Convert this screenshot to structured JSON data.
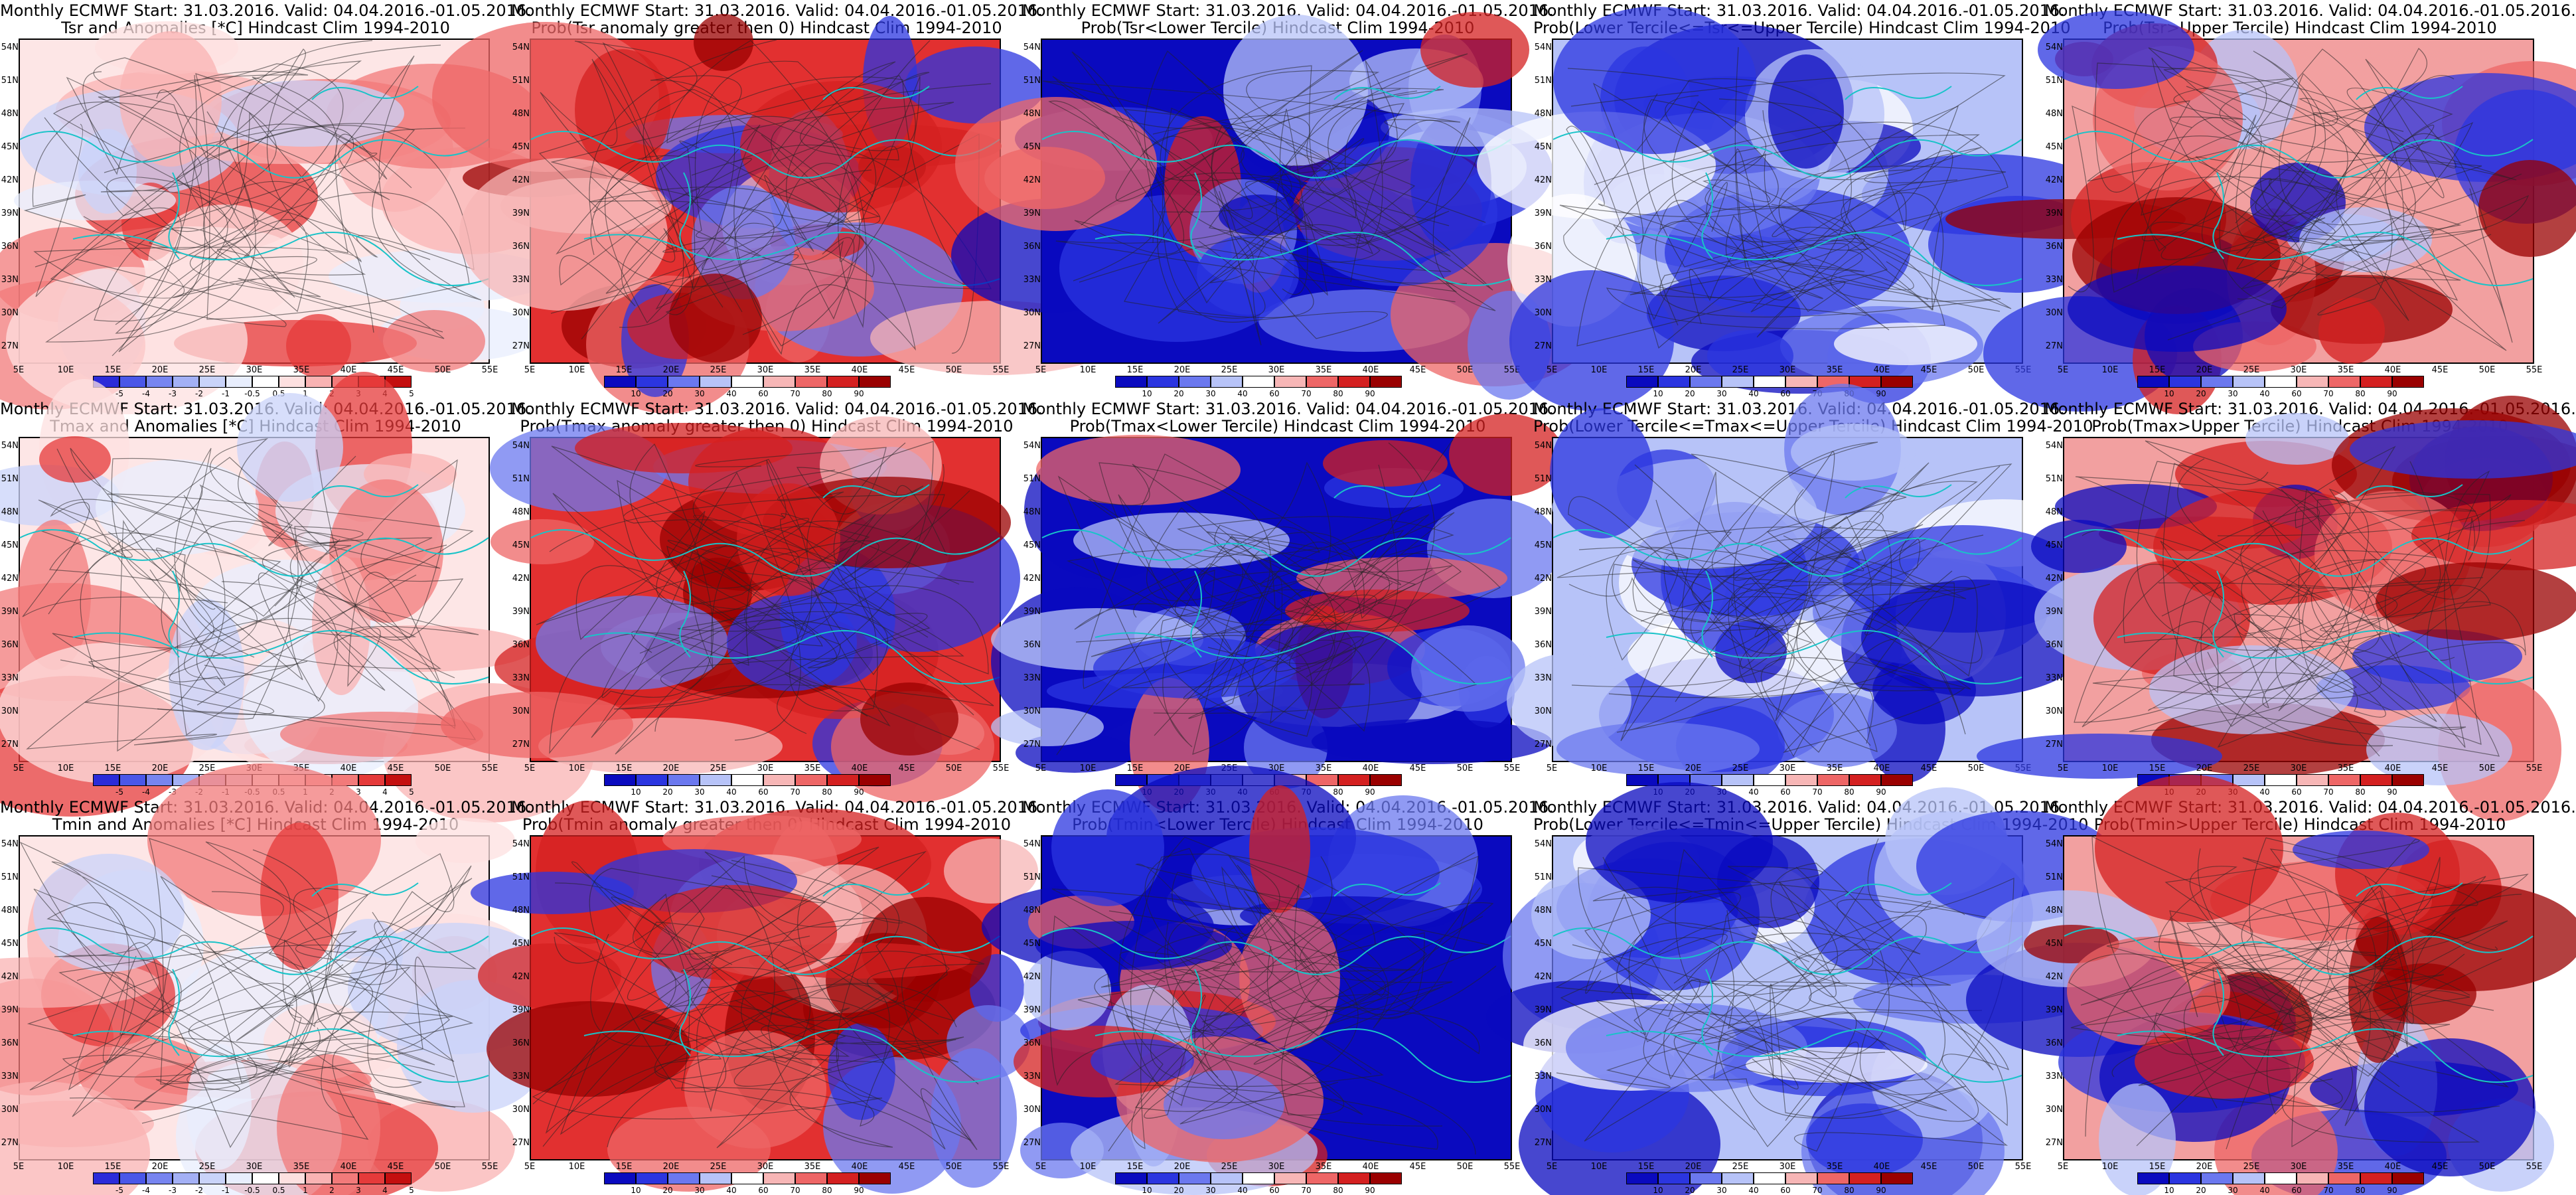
{
  "panels": [
    {
      "line1": "Monthly ECMWF Start: 31.03.2016. Valid: 04.04.2016.-01.05.2016.",
      "line2": "Tsr and Anomalies [*C] Hindcast Clim 1994-2010",
      "scheme": "anom",
      "colorbar": [
        "-5",
        "-4",
        "-3",
        "-2",
        "-1",
        "-0.5",
        "0.5",
        "1",
        "2",
        "3",
        "4",
        "5"
      ]
    },
    {
      "line1": "Monthly ECMWF Start: 31.03.2016. Valid: 04.04.2016.-01.05.2016.",
      "line2": "Prob(Tsr anomaly greater then 0) Hindcast Clim 1994-2010",
      "scheme": "hot",
      "colorbar": [
        "10",
        "20",
        "30",
        "40",
        "60",
        "70",
        "80",
        "90"
      ]
    },
    {
      "line1": "Monthly ECMWF Start: 31.03.2016. Valid: 04.04.2016.-01.05.2016.",
      "line2": "Prob(Tsr<Lower Tercile) Hindcast Clim 1994-2010",
      "scheme": "cold",
      "colorbar": [
        "10",
        "20",
        "30",
        "40",
        "60",
        "70",
        "80",
        "90"
      ]
    },
    {
      "line1": "Monthly ECMWF Start: 31.03.2016. Valid: 04.04.2016.-01.05.2016.",
      "line2": "Prob(Lower Tercile<=Tsr<=Upper Tercile) Hindcast Clim 1994-2010",
      "scheme": "mid",
      "colorbar": [
        "10",
        "20",
        "30",
        "40",
        "60",
        "70",
        "80",
        "90"
      ]
    },
    {
      "line1": "Monthly ECMWF Start: 31.03.2016. Valid: 04.04.2016.-01.05.2016.",
      "line2": "Prob(Tsr>Upper Tercile) Hindcast Clim 1994-2010",
      "scheme": "upper",
      "colorbar": [
        "10",
        "20",
        "30",
        "40",
        "60",
        "70",
        "80",
        "90"
      ]
    },
    {
      "line1": "Monthly ECMWF Start: 31.03.2016. Valid: 04.04.2016.-01.05.2016.",
      "line2": "Tmax and Anomalies [*C] Hindcast Clim 1994-2010",
      "scheme": "anom",
      "colorbar": [
        "-5",
        "-4",
        "-3",
        "-2",
        "-1",
        "-0.5",
        "0.5",
        "1",
        "2",
        "3",
        "4",
        "5"
      ]
    },
    {
      "line1": "Monthly ECMWF Start: 31.03.2016. Valid: 04.04.2016.-01.05.2016.",
      "line2": "Prob(Tmax anomaly greater then 0) Hindcast Clim 1994-2010",
      "scheme": "hot",
      "colorbar": [
        "10",
        "20",
        "30",
        "40",
        "60",
        "70",
        "80",
        "90"
      ]
    },
    {
      "line1": "Monthly ECMWF Start: 31.03.2016. Valid: 04.04.2016.-01.05.2016.",
      "line2": "Prob(Tmax<Lower Tercile) Hindcast Clim 1994-2010",
      "scheme": "cold",
      "colorbar": [
        "10",
        "20",
        "30",
        "40",
        "60",
        "70",
        "80",
        "90"
      ]
    },
    {
      "line1": "Monthly ECMWF Start: 31.03.2016. Valid: 04.04.2016.-01.05.2016.",
      "line2": "Prob(Lower Tercile<=Tmax<=Upper Tercile) Hindcast Clim 1994-2010",
      "scheme": "mid",
      "colorbar": [
        "10",
        "20",
        "30",
        "40",
        "60",
        "70",
        "80",
        "90"
      ]
    },
    {
      "line1": "Monthly ECMWF Start: 31.03.2016. Valid: 04.04.2016.-01.05.2016.",
      "line2": "Prob(Tmax>Upper Tercile) Hindcast Clim 1994-2010",
      "scheme": "upper",
      "colorbar": [
        "10",
        "20",
        "30",
        "40",
        "60",
        "70",
        "80",
        "90"
      ]
    },
    {
      "line1": "Monthly ECMWF Start: 31.03.2016. Valid: 04.04.2016.-01.05.2016.",
      "line2": "Tmin and Anomalies [*C] Hindcast Clim 1994-2010",
      "scheme": "anom",
      "colorbar": [
        "-5",
        "-4",
        "-3",
        "-2",
        "-1",
        "-0.5",
        "0.5",
        "1",
        "2",
        "3",
        "4",
        "5"
      ]
    },
    {
      "line1": "Monthly ECMWF Start: 31.03.2016. Valid: 04.04.2016.-01.05.2016.",
      "line2": "Prob(Tmin anomaly greater then 0) Hindcast Clim 1994-2010",
      "scheme": "hot",
      "colorbar": [
        "10",
        "20",
        "30",
        "40",
        "60",
        "70",
        "80",
        "90"
      ]
    },
    {
      "line1": "Monthly ECMWF Start: 31.03.2016. Valid: 04.04.2016.-01.05.2016.",
      "line2": "Prob(Tmin<Lower Tercile) Hindcast Clim 1994-2010",
      "scheme": "cold",
      "colorbar": [
        "10",
        "20",
        "30",
        "40",
        "60",
        "70",
        "80",
        "90"
      ]
    },
    {
      "line1": "Monthly ECMWF Start: 31.03.2016. Valid: 04.04.2016.-01.05.2016.",
      "line2": "Prob(Lower Tercile<=Tmin<=Upper Tercile) Hindcast Clim 1994-2010",
      "scheme": "mid",
      "colorbar": [
        "10",
        "20",
        "30",
        "40",
        "60",
        "70",
        "80",
        "90"
      ]
    },
    {
      "line1": "Monthly ECMWF Start: 31.03.2016. Valid: 04.04.2016.-01.05.2016.",
      "line2": "Prob(Tmin>Upper Tercile) Hindcast Clim 1994-2010",
      "scheme": "upper",
      "colorbar": [
        "10",
        "20",
        "30",
        "40",
        "60",
        "70",
        "80",
        "90"
      ]
    }
  ],
  "lat_labels": [
    "54N",
    "51N",
    "48N",
    "45N",
    "42N",
    "39N",
    "36N",
    "33N",
    "30N",
    "27N"
  ],
  "lon_labels": [
    "5E",
    "10E",
    "15E",
    "20E",
    "25E",
    "30E",
    "35E",
    "40E",
    "45E",
    "50E",
    "55E"
  ],
  "colors": {
    "anom": [
      "#2b2bd9",
      "#4a57e8",
      "#7785f0",
      "#a3b0f5",
      "#c9d3f9",
      "#e8eefd",
      "#ffffff",
      "#fde0e0",
      "#f9b3b3",
      "#f27a7a",
      "#e53a3a",
      "#c40f0f"
    ],
    "prob": [
      "#0a0abf",
      "#2b35e0",
      "#6b78ef",
      "#b7c3f8",
      "#ffffff",
      "#f7b6b6",
      "#ee6666",
      "#d42020",
      "#9a0000"
    ],
    "coast": "#19c3c8",
    "contour": "#222222"
  }
}
